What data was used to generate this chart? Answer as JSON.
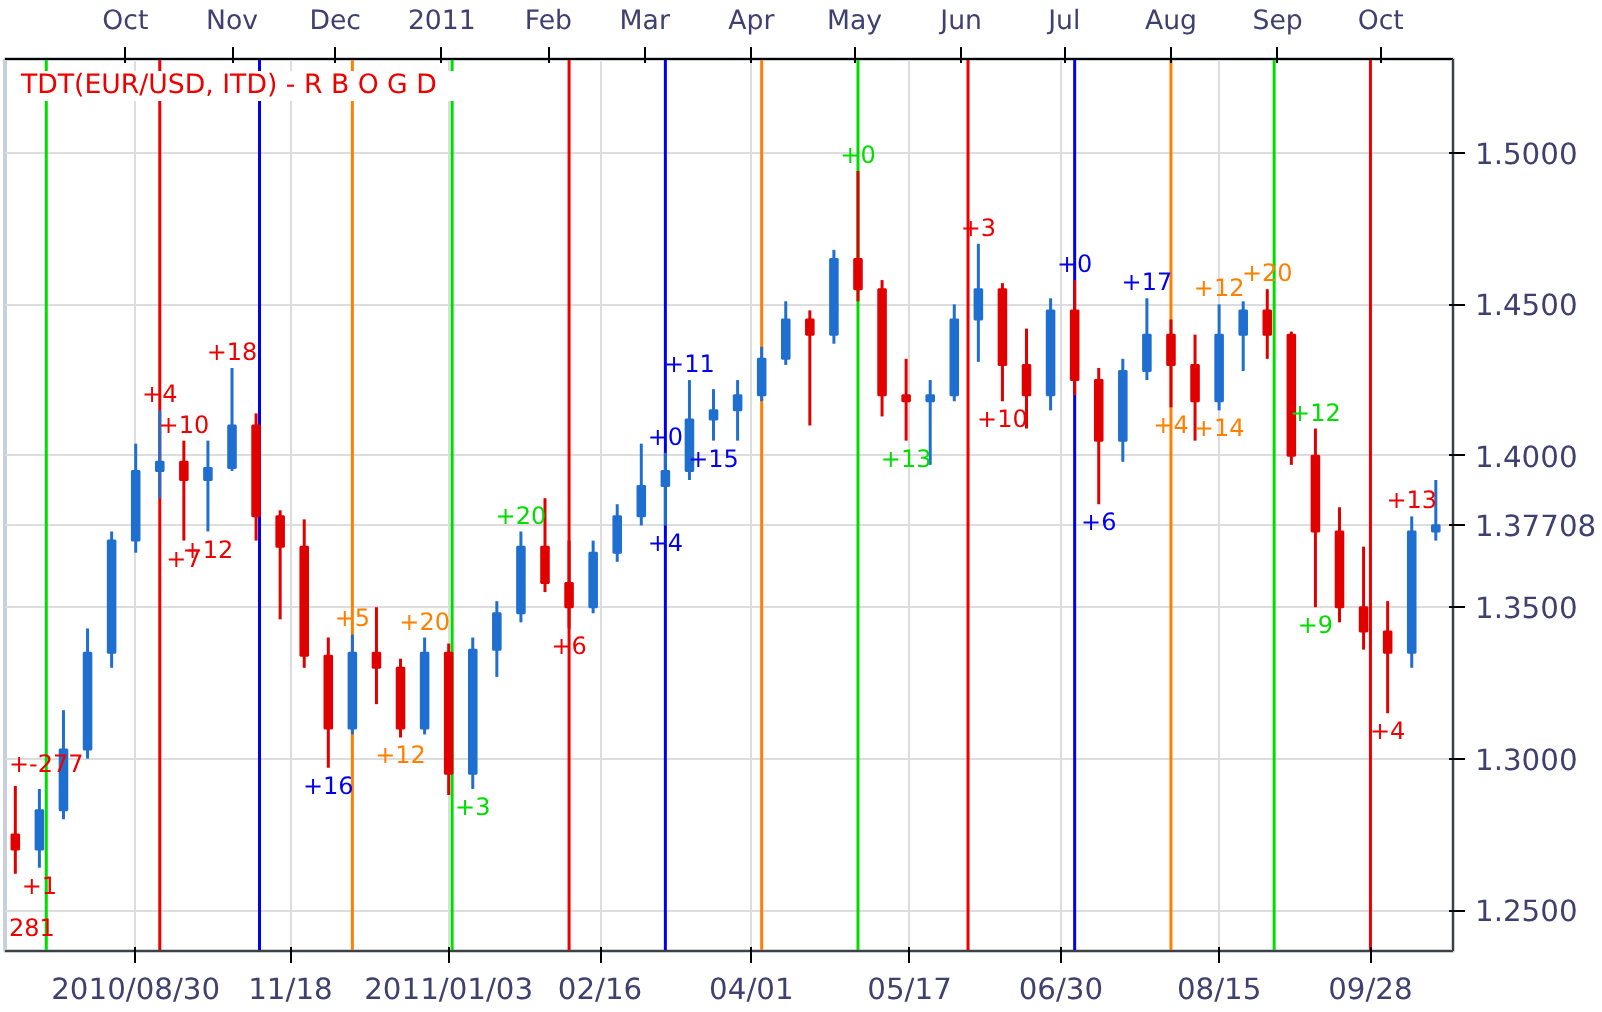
{
  "chart_data": {
    "type": "candlestick",
    "title": "TDT(EUR/USD, ITD) -  R  B  O  G  D",
    "x": [
      "2010-08-30",
      "2010-09-06",
      "2010-09-13",
      "2010-09-20",
      "2010-09-27",
      "2010-10-04",
      "2010-10-11",
      "2010-10-18",
      "2010-10-25",
      "2010-11-01",
      "2010-11-08",
      "2010-11-15",
      "2010-11-22",
      "2010-11-29",
      "2010-12-06",
      "2010-12-13",
      "2010-12-20",
      "2010-12-27",
      "2011-01-03",
      "2011-01-10",
      "2011-01-17",
      "2011-01-24",
      "2011-01-31",
      "2011-02-07",
      "2011-02-14",
      "2011-02-21",
      "2011-02-28",
      "2011-03-07",
      "2011-03-14",
      "2011-03-21",
      "2011-03-28",
      "2011-04-04",
      "2011-04-11",
      "2011-04-18",
      "2011-04-25",
      "2011-05-02",
      "2011-05-09",
      "2011-05-16",
      "2011-05-23",
      "2011-05-30",
      "2011-06-06",
      "2011-06-13",
      "2011-06-20",
      "2011-06-27",
      "2011-07-04",
      "2011-07-11",
      "2011-07-18",
      "2011-07-25",
      "2011-08-01",
      "2011-08-08",
      "2011-08-15",
      "2011-08-22",
      "2011-08-29",
      "2011-09-05",
      "2011-09-12",
      "2011-09-19",
      "2011-09-26",
      "2011-10-03",
      "2011-10-10",
      "2011-10-17"
    ],
    "ohlc": [
      [
        1.275,
        1.291,
        1.262,
        1.27
      ],
      [
        1.27,
        1.29,
        1.264,
        1.283
      ],
      [
        1.283,
        1.316,
        1.28,
        1.303
      ],
      [
        1.303,
        1.343,
        1.3,
        1.335
      ],
      [
        1.335,
        1.375,
        1.33,
        1.372
      ],
      [
        1.372,
        1.404,
        1.368,
        1.395
      ],
      [
        1.395,
        1.415,
        1.386,
        1.398
      ],
      [
        1.398,
        1.405,
        1.372,
        1.392
      ],
      [
        1.392,
        1.405,
        1.375,
        1.396
      ],
      [
        1.396,
        1.429,
        1.395,
        1.41
      ],
      [
        1.41,
        1.414,
        1.372,
        1.38
      ],
      [
        1.38,
        1.382,
        1.346,
        1.37
      ],
      [
        1.37,
        1.379,
        1.33,
        1.334
      ],
      [
        1.334,
        1.34,
        1.297,
        1.31
      ],
      [
        1.31,
        1.341,
        1.308,
        1.335
      ],
      [
        1.335,
        1.35,
        1.318,
        1.33
      ],
      [
        1.33,
        1.333,
        1.307,
        1.31
      ],
      [
        1.31,
        1.34,
        1.308,
        1.335
      ],
      [
        1.335,
        1.338,
        1.288,
        1.295
      ],
      [
        1.295,
        1.34,
        1.29,
        1.336
      ],
      [
        1.336,
        1.352,
        1.327,
        1.348
      ],
      [
        1.348,
        1.375,
        1.345,
        1.37
      ],
      [
        1.37,
        1.386,
        1.355,
        1.358
      ],
      [
        1.358,
        1.372,
        1.343,
        1.35
      ],
      [
        1.35,
        1.372,
        1.348,
        1.368
      ],
      [
        1.368,
        1.384,
        1.365,
        1.38
      ],
      [
        1.38,
        1.404,
        1.377,
        1.39
      ],
      [
        1.39,
        1.401,
        1.377,
        1.395
      ],
      [
        1.395,
        1.425,
        1.392,
        1.412
      ],
      [
        1.412,
        1.422,
        1.405,
        1.415
      ],
      [
        1.415,
        1.425,
        1.405,
        1.42
      ],
      [
        1.42,
        1.436,
        1.418,
        1.432
      ],
      [
        1.432,
        1.451,
        1.43,
        1.445
      ],
      [
        1.445,
        1.448,
        1.41,
        1.44
      ],
      [
        1.44,
        1.468,
        1.437,
        1.465
      ],
      [
        1.465,
        1.494,
        1.451,
        1.455
      ],
      [
        1.455,
        1.458,
        1.413,
        1.42
      ],
      [
        1.42,
        1.432,
        1.405,
        1.418
      ],
      [
        1.418,
        1.425,
        1.397,
        1.42
      ],
      [
        1.42,
        1.45,
        1.418,
        1.445
      ],
      [
        1.445,
        1.47,
        1.431,
        1.455
      ],
      [
        1.455,
        1.457,
        1.418,
        1.43
      ],
      [
        1.43,
        1.442,
        1.409,
        1.42
      ],
      [
        1.42,
        1.452,
        1.415,
        1.448
      ],
      [
        1.448,
        1.458,
        1.42,
        1.425
      ],
      [
        1.425,
        1.429,
        1.384,
        1.405
      ],
      [
        1.405,
        1.432,
        1.398,
        1.428
      ],
      [
        1.428,
        1.452,
        1.425,
        1.44
      ],
      [
        1.44,
        1.445,
        1.416,
        1.43
      ],
      [
        1.43,
        1.44,
        1.405,
        1.418
      ],
      [
        1.418,
        1.45,
        1.415,
        1.44
      ],
      [
        1.44,
        1.451,
        1.428,
        1.448
      ],
      [
        1.448,
        1.455,
        1.432,
        1.44
      ],
      [
        1.44,
        1.441,
        1.397,
        1.4
      ],
      [
        1.4,
        1.409,
        1.35,
        1.375
      ],
      [
        1.375,
        1.383,
        1.345,
        1.35
      ],
      [
        1.35,
        1.37,
        1.336,
        1.342
      ],
      [
        1.342,
        1.352,
        1.315,
        1.335
      ],
      [
        1.335,
        1.38,
        1.33,
        1.375
      ],
      [
        1.375,
        1.392,
        1.372,
        1.37708
      ]
    ],
    "colors": [
      "#e00000",
      "#1f6fd0",
      "#1f6fd0",
      "#1f6fd0",
      "#1f6fd0",
      "#1f6fd0",
      "#1f6fd0",
      "#e00000",
      "#1f6fd0",
      "#1f6fd0",
      "#e00000",
      "#e00000",
      "#e00000",
      "#e00000",
      "#1f6fd0",
      "#e00000",
      "#e00000",
      "#1f6fd0",
      "#e00000",
      "#1f6fd0",
      "#1f6fd0",
      "#1f6fd0",
      "#e00000",
      "#e00000",
      "#1f6fd0",
      "#1f6fd0",
      "#1f6fd0",
      "#1f6fd0",
      "#1f6fd0",
      "#1f6fd0",
      "#1f6fd0",
      "#1f6fd0",
      "#1f6fd0",
      "#e00000",
      "#1f6fd0",
      "#e00000",
      "#e00000",
      "#e00000",
      "#1f6fd0",
      "#1f6fd0",
      "#1f6fd0",
      "#e00000",
      "#e00000",
      "#1f6fd0",
      "#e00000",
      "#e00000",
      "#1f6fd0",
      "#1f6fd0",
      "#e00000",
      "#e00000",
      "#1f6fd0",
      "#1f6fd0",
      "#e00000",
      "#e00000",
      "#e00000",
      "#e00000",
      "#e00000",
      "#e00000",
      "#1f6fd0",
      "#1f6fd0"
    ],
    "xlim": [
      "2010-08-27",
      "2011-10-22"
    ],
    "xticks": [
      {
        "value": "2010-10-04",
        "label": "2010/08/30"
      },
      {
        "value": "2010-11-18",
        "label": "11/18"
      },
      {
        "value": "2011-01-03",
        "label": "2011/01/03"
      },
      {
        "value": "2011-02-16",
        "label": "02/16"
      },
      {
        "value": "2011-04-01",
        "label": "04/01"
      },
      {
        "value": "2011-05-17",
        "label": "05/17"
      },
      {
        "value": "2011-06-30",
        "label": "06/30"
      },
      {
        "value": "2011-08-15",
        "label": "08/15"
      },
      {
        "value": "2011-09-28",
        "label": "09/28"
      }
    ],
    "x2lim": [
      "2010-08-27",
      "2011-10-22"
    ],
    "x2ticks": [
      {
        "value": "2010-10-01",
        "label": "Oct"
      },
      {
        "value": "2010-11-01",
        "label": "Nov"
      },
      {
        "value": "2010-12-01",
        "label": "Dec"
      },
      {
        "value": "2011-01-01",
        "label": "2011"
      },
      {
        "value": "2011-02-01",
        "label": "Feb"
      },
      {
        "value": "2011-03-01",
        "label": "Mar"
      },
      {
        "value": "2011-04-01",
        "label": "Apr"
      },
      {
        "value": "2011-05-01",
        "label": "May"
      },
      {
        "value": "2011-06-01",
        "label": "Jun"
      },
      {
        "value": "2011-07-01",
        "label": "Jul"
      },
      {
        "value": "2011-08-01",
        "label": "Aug"
      },
      {
        "value": "2011-09-01",
        "label": "Sep"
      },
      {
        "value": "2011-10-01",
        "label": "Oct"
      }
    ],
    "ylim": [
      1.2365,
      1.531
    ],
    "yticks": [
      {
        "value": 1.25,
        "label": "1.2500"
      },
      {
        "value": 1.3,
        "label": "1.3000"
      },
      {
        "value": 1.35,
        "label": "1.3500"
      },
      {
        "value": 1.37708,
        "label": "1.37708"
      },
      {
        "value": 1.4,
        "label": "1.4000"
      },
      {
        "value": 1.45,
        "label": "1.4500"
      },
      {
        "value": 1.5,
        "label": "1.5000"
      }
    ],
    "grid": true,
    "ref_lines": [
      {
        "axis": "x",
        "value": "2010-09-08",
        "color": "#00dd00"
      },
      {
        "axis": "x",
        "value": "2010-10-11",
        "color": "#ee0000"
      },
      {
        "axis": "x",
        "value": "2010-11-09",
        "color": "#0000ee"
      },
      {
        "axis": "x",
        "value": "2010-12-06",
        "color": "#ff8000"
      },
      {
        "axis": "x",
        "value": "2011-01-04",
        "color": "#00dd00"
      },
      {
        "axis": "x",
        "value": "2011-02-07",
        "color": "#ee0000"
      },
      {
        "axis": "x",
        "value": "2011-03-07",
        "color": "#0000ee"
      },
      {
        "axis": "x",
        "value": "2011-04-04",
        "color": "#ff8000"
      },
      {
        "axis": "x",
        "value": "2011-05-02",
        "color": "#00dd00"
      },
      {
        "axis": "x",
        "value": "2011-06-03",
        "color": "#ee0000"
      },
      {
        "axis": "x",
        "value": "2011-07-04",
        "color": "#0000ee"
      },
      {
        "axis": "x",
        "value": "2011-08-01",
        "color": "#ff8000"
      },
      {
        "axis": "x",
        "value": "2011-08-31",
        "color": "#00dd00"
      },
      {
        "axis": "x",
        "value": "2011-09-28",
        "color": "#ee0000"
      }
    ],
    "annotations": [
      "+-277",
      "281",
      {
        "text": "+1",
        "x": "2010-09-06",
        "y": 1.264
      },
      {
        "text": "+4",
        "x": "2010-10-11",
        "y": 1.415
      },
      {
        "text": "+10",
        "x": "2010-10-18",
        "y": 1.405
      },
      {
        "text": "+18",
        "x": "2010-11-01",
        "y": 1.429
      },
      {
        "text": "+7",
        "x": "2010-10-18",
        "y": 1.372
      },
      {
        "text": "+12",
        "x": "2010-10-25",
        "y": 1.375
      },
      {
        "text": "+16",
        "x": "2010-11-29",
        "y": 1.297
      },
      {
        "text": "+5",
        "x": "2010-12-06",
        "y": 1.341
      },
      {
        "text": "+12",
        "x": "2010-12-20",
        "y": 1.307
      },
      {
        "text": "+20",
        "x": "2010-12-27",
        "y": 1.34
      },
      {
        "text": "+3",
        "x": "2011-01-10",
        "y": 1.29
      },
      {
        "text": "+20",
        "x": "2011-01-24",
        "y": 1.375
      },
      {
        "text": "+6",
        "x": "2011-02-07",
        "y": 1.343
      },
      {
        "text": "+0",
        "x": "2011-03-07",
        "y": 1.401
      },
      {
        "text": "+4",
        "x": "2011-03-07",
        "y": 1.377
      },
      {
        "text": "+11",
        "x": "2011-03-14",
        "y": 1.425
      },
      {
        "text": "+15",
        "x": "2011-03-21",
        "y": 1.405
      },
      {
        "text": "+0",
        "x": "2011-05-02",
        "y": 1.494
      },
      {
        "text": "+13",
        "x": "2011-05-16",
        "y": 1.405
      },
      {
        "text": "+3",
        "x": "2011-06-06",
        "y": 1.47
      },
      {
        "text": "+10",
        "x": "2011-06-13",
        "y": 1.418
      },
      {
        "text": "+0",
        "x": "2011-07-04",
        "y": 1.458
      },
      {
        "text": "+6",
        "x": "2011-07-11",
        "y": 1.384
      },
      {
        "text": "+17",
        "x": "2011-07-25",
        "y": 1.452
      },
      {
        "text": "+4",
        "x": "2011-08-01",
        "y": 1.416
      },
      {
        "text": "+12",
        "x": "2011-08-15",
        "y": 1.45
      },
      {
        "text": "+14",
        "x": "2011-08-15",
        "y": 1.415
      },
      {
        "text": "+20",
        "x": "2011-08-29",
        "y": 1.455
      },
      {
        "text": "+12",
        "x": "2011-09-12",
        "y": 1.409
      },
      {
        "text": "+9",
        "x": "2011-09-12",
        "y": 1.35
      },
      {
        "text": "+4",
        "x": "2011-10-03",
        "y": 1.315
      },
      {
        "text": "+13",
        "x": "2011-10-10",
        "y": 1.38
      }
    ]
  }
}
